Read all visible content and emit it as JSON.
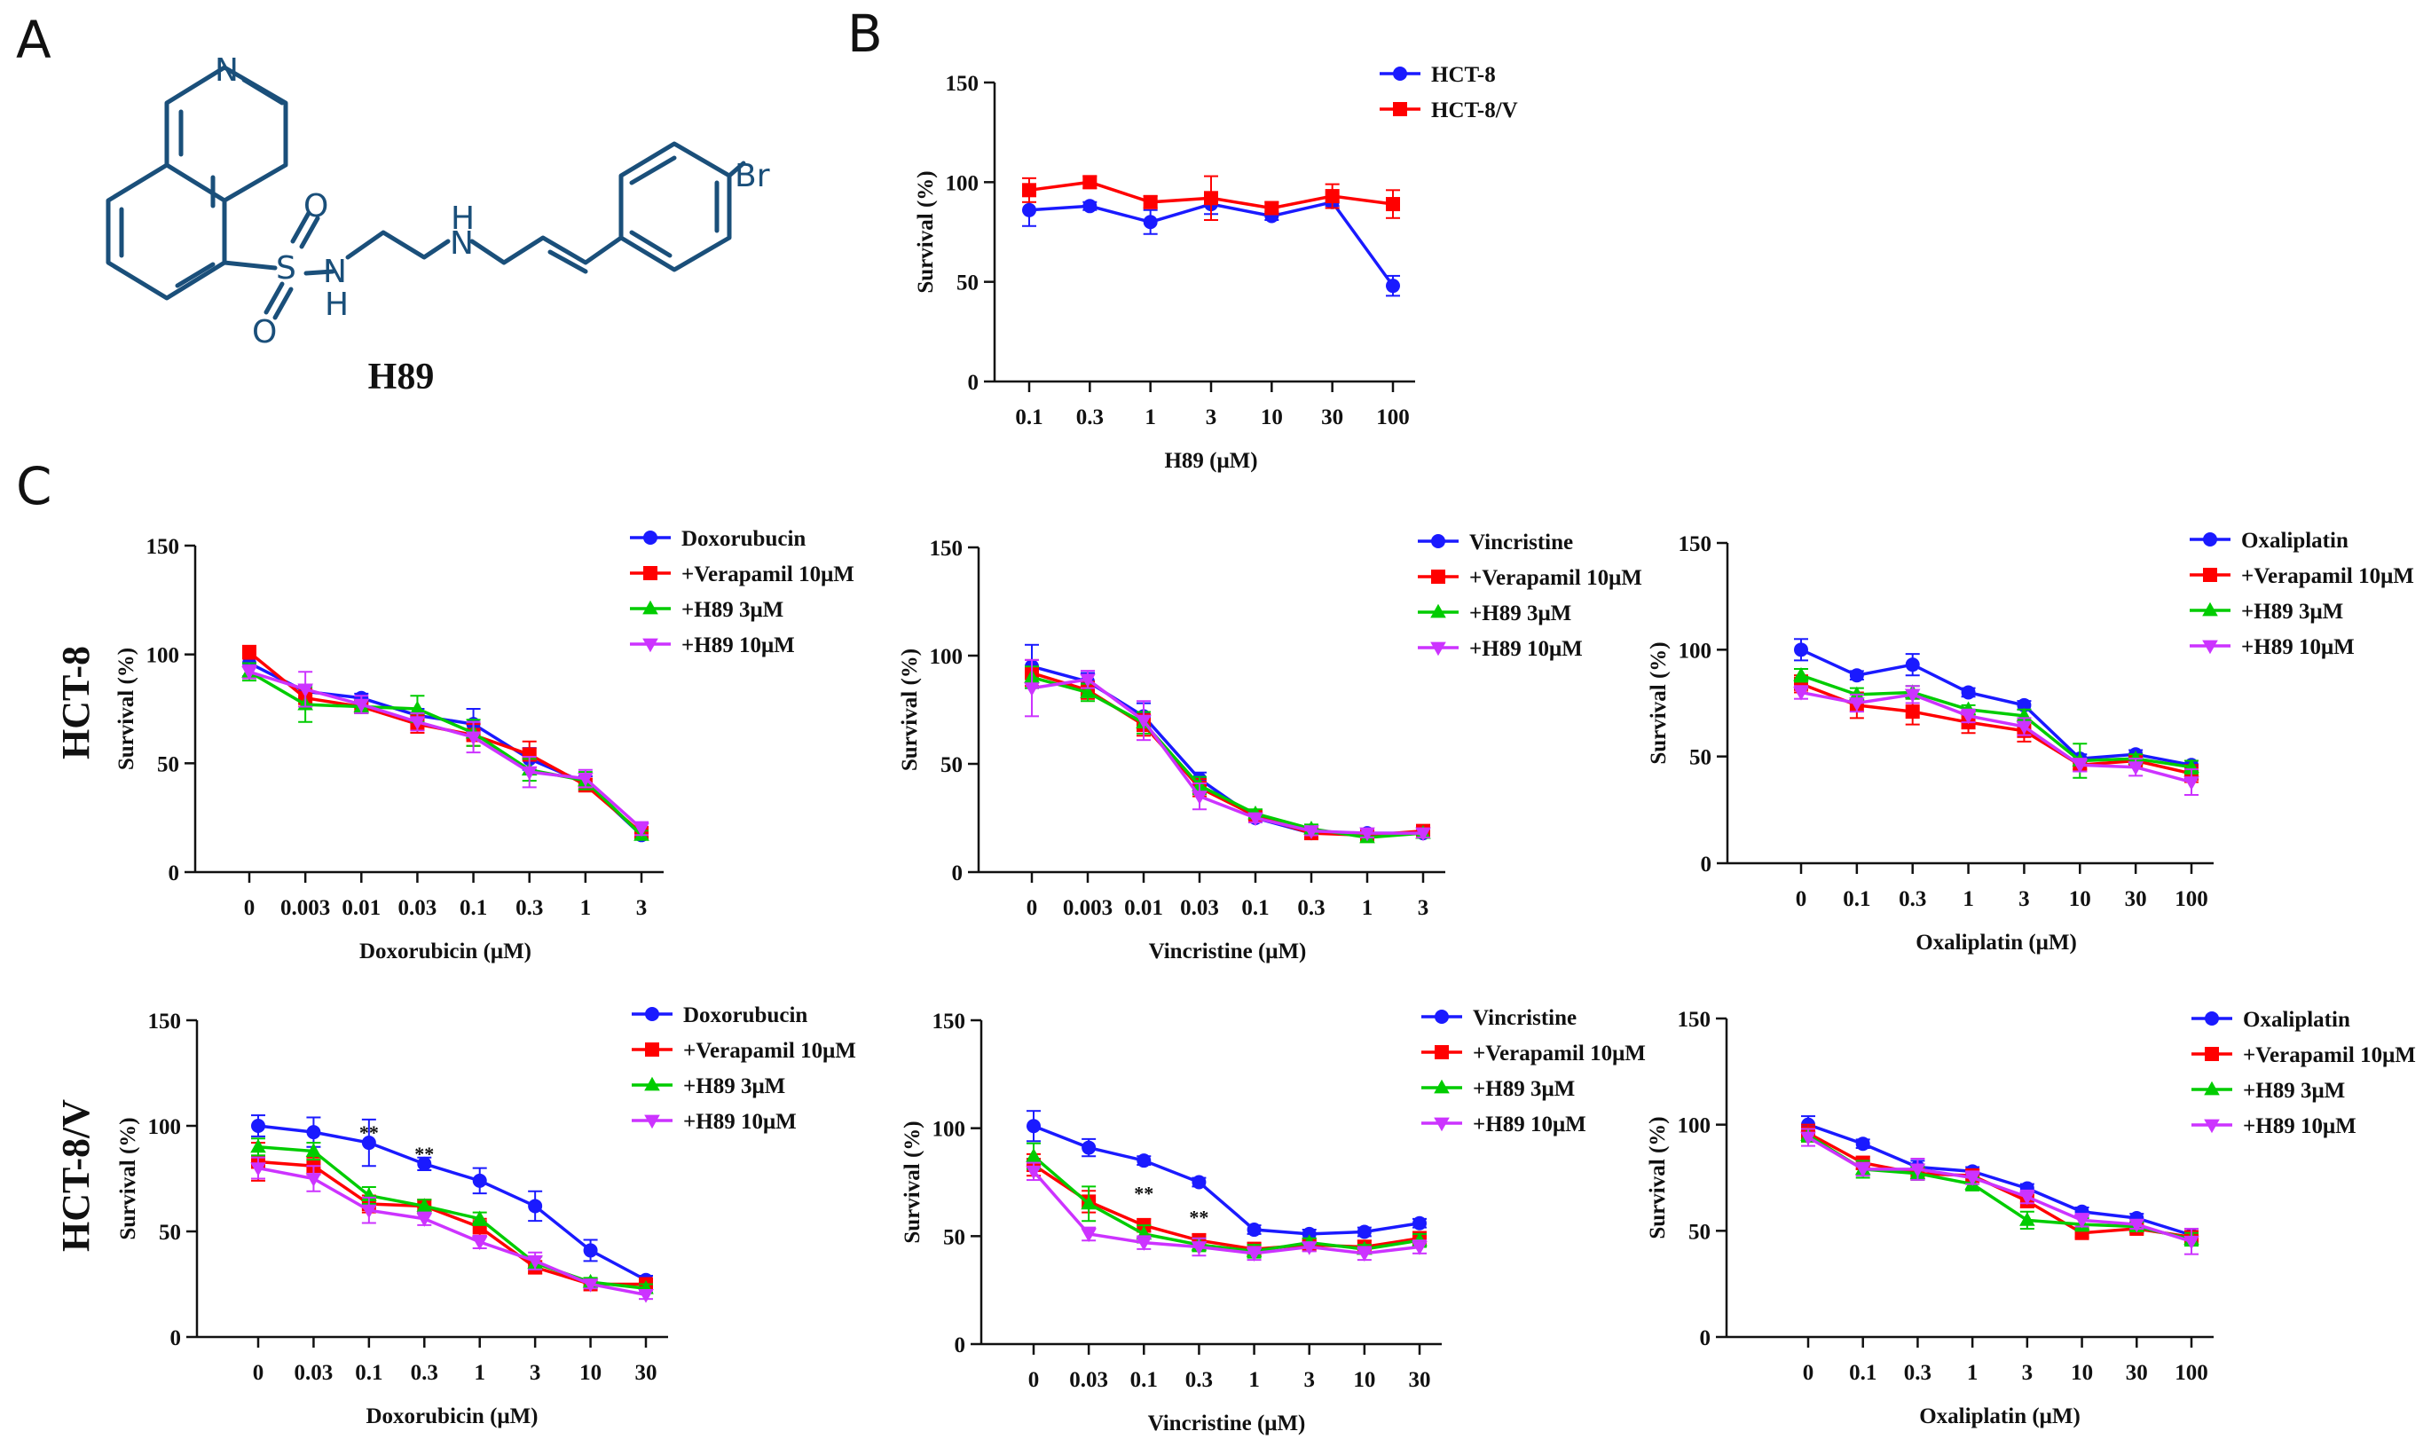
{
  "panels": {
    "a": "A",
    "b": "B",
    "c": "C"
  },
  "molecule": {
    "name": "H89",
    "atoms": {
      "N_ring": "N",
      "S": "S",
      "O1": "O",
      "O2": "O",
      "N1": "N",
      "H1": "H",
      "N2": "N",
      "H2": "H",
      "Br": "Br"
    }
  },
  "row_labels": [
    "HCT-8",
    "HCT-8/V"
  ],
  "colors": {
    "blue": "#1a1aff",
    "red": "#ff0000",
    "green": "#00cc00",
    "magenta": "#cc33ff",
    "axis": "#111111"
  },
  "chart_data": [
    {
      "id": "B",
      "type": "line",
      "title": "",
      "xlabel": "H89 (μM)",
      "ylabel": "Survival (%)",
      "categories": [
        "0.1",
        "0.3",
        "1",
        "3",
        "10",
        "30",
        "100"
      ],
      "ylim": [
        0,
        150
      ],
      "yticks": [
        0,
        50,
        100,
        150
      ],
      "legend_position": "top-right",
      "series": [
        {
          "name": "HCT-8",
          "color": "#1a1aff",
          "marker": "circle",
          "values": [
            86,
            88,
            80,
            89,
            83,
            90,
            48
          ],
          "errors": [
            8,
            2,
            6,
            5,
            2,
            2,
            5
          ]
        },
        {
          "name": "HCT-8/V",
          "color": "#ff0000",
          "marker": "square",
          "values": [
            96,
            100,
            90,
            92,
            87,
            93,
            89
          ],
          "errors": [
            6,
            3,
            3,
            11,
            3,
            6,
            7
          ]
        }
      ],
      "annotations": []
    },
    {
      "id": "C1",
      "type": "line",
      "xlabel": "Doxorubicin (μM)",
      "ylabel": "Survival (%)",
      "categories": [
        "0",
        "0.003",
        "0.01",
        "0.03",
        "0.1",
        "0.3",
        "1",
        "3"
      ],
      "ylim": [
        0,
        150
      ],
      "yticks": [
        0,
        50,
        100,
        150
      ],
      "legend_position": "top-right",
      "series": [
        {
          "name": "Doxorubucin",
          "color": "#1a1aff",
          "marker": "circle",
          "values": [
            96,
            83,
            80,
            72,
            68,
            52,
            41,
            17
          ],
          "errors": [
            6,
            3,
            2,
            3,
            7,
            5,
            3,
            2
          ]
        },
        {
          "name": "+Verapamil 10μM",
          "color": "#ff0000",
          "marker": "square",
          "values": [
            101,
            80,
            76,
            68,
            63,
            54,
            40,
            18
          ],
          "errors": [
            3,
            4,
            3,
            4,
            5,
            6,
            3,
            2
          ]
        },
        {
          "name": "+H89 3μM",
          "color": "#00cc00",
          "marker": "triangle-up",
          "values": [
            92,
            77,
            76,
            75,
            64,
            47,
            42,
            17
          ],
          "errors": [
            4,
            8,
            3,
            6,
            6,
            5,
            4,
            2
          ]
        },
        {
          "name": "+H89 10μM",
          "color": "#cc33ff",
          "marker": "triangle-down",
          "values": [
            92,
            84,
            77,
            69,
            62,
            46,
            43,
            20
          ],
          "errors": [
            3,
            8,
            4,
            4,
            7,
            7,
            4,
            3
          ]
        }
      ],
      "annotations": []
    },
    {
      "id": "C2",
      "type": "line",
      "xlabel": "Vincristine (μM)",
      "ylabel": "Survival (%)",
      "categories": [
        "0",
        "0.003",
        "0.01",
        "0.03",
        "0.1",
        "0.3",
        "1",
        "3"
      ],
      "ylim": [
        0,
        150
      ],
      "yticks": [
        0,
        50,
        100,
        150
      ],
      "legend_position": "top-right",
      "series": [
        {
          "name": "Vincristine",
          "color": "#1a1aff",
          "marker": "circle",
          "values": [
            95,
            88,
            72,
            43,
            25,
            18,
            18,
            18
          ],
          "errors": [
            10,
            4,
            6,
            3,
            2,
            2,
            2,
            2
          ]
        },
        {
          "name": "+Verapamil 10μM",
          "color": "#ff0000",
          "marker": "square",
          "values": [
            92,
            84,
            68,
            39,
            26,
            18,
            17,
            19
          ],
          "errors": [
            6,
            4,
            5,
            4,
            2,
            2,
            2,
            2
          ]
        },
        {
          "name": "+H89 3μM",
          "color": "#00cc00",
          "marker": "triangle-up",
          "values": [
            90,
            83,
            69,
            40,
            27,
            20,
            16,
            18
          ],
          "errors": [
            5,
            4,
            5,
            4,
            2,
            2,
            2,
            2
          ]
        },
        {
          "name": "+H89 10μM",
          "color": "#cc33ff",
          "marker": "triangle-down",
          "values": [
            85,
            89,
            70,
            35,
            25,
            19,
            18,
            18
          ],
          "errors": [
            13,
            4,
            9,
            6,
            2,
            2,
            2,
            2
          ]
        }
      ],
      "annotations": []
    },
    {
      "id": "C3",
      "type": "line",
      "xlabel": "Oxaliplatin (μM)",
      "ylabel": "Survival (%)",
      "categories": [
        "0",
        "0.1",
        "0.3",
        "1",
        "3",
        "10",
        "30",
        "100"
      ],
      "ylim": [
        0,
        150
      ],
      "yticks": [
        0,
        50,
        100,
        150
      ],
      "legend_position": "top-right",
      "series": [
        {
          "name": "Oxaliplatin",
          "color": "#1a1aff",
          "marker": "circle",
          "values": [
            100,
            88,
            93,
            80,
            74,
            49,
            51,
            46
          ],
          "errors": [
            5,
            2,
            5,
            2,
            2,
            2,
            2,
            2
          ]
        },
        {
          "name": "+Verapamil 10μM",
          "color": "#ff0000",
          "marker": "square",
          "values": [
            84,
            74,
            71,
            66,
            62,
            46,
            48,
            42
          ],
          "errors": [
            4,
            6,
            6,
            5,
            5,
            2,
            2,
            4
          ]
        },
        {
          "name": "+H89 3μM",
          "color": "#00cc00",
          "marker": "triangle-up",
          "values": [
            88,
            79,
            80,
            72,
            69,
            48,
            49,
            45
          ],
          "errors": [
            3,
            3,
            3,
            2,
            3,
            8,
            2,
            3
          ]
        },
        {
          "name": "+H89 10μM",
          "color": "#cc33ff",
          "marker": "triangle-down",
          "values": [
            80,
            75,
            79,
            69,
            64,
            46,
            45,
            38
          ],
          "errors": [
            3,
            4,
            4,
            3,
            4,
            3,
            4,
            6
          ]
        }
      ],
      "annotations": []
    },
    {
      "id": "C4",
      "type": "line",
      "xlabel": "Doxorubicin (μM)",
      "ylabel": "Survival (%)",
      "categories": [
        "0",
        "0.03",
        "0.1",
        "0.3",
        "1",
        "3",
        "10",
        "30"
      ],
      "ylim": [
        0,
        150
      ],
      "yticks": [
        0,
        50,
        100,
        150
      ],
      "legend_position": "top-right",
      "series": [
        {
          "name": "Doxorubucin",
          "color": "#1a1aff",
          "marker": "circle",
          "values": [
            100,
            97,
            92,
            82,
            74,
            62,
            41,
            27
          ],
          "errors": [
            5,
            7,
            11,
            3,
            6,
            7,
            5,
            2
          ]
        },
        {
          "name": "+Verapamil 10μM",
          "color": "#ff0000",
          "marker": "square",
          "values": [
            83,
            81,
            63,
            62,
            52,
            33,
            25,
            25
          ],
          "errors": [
            9,
            4,
            4,
            3,
            4,
            3,
            2,
            2
          ]
        },
        {
          "name": "+H89 3μM",
          "color": "#00cc00",
          "marker": "triangle-up",
          "values": [
            90,
            88,
            67,
            62,
            56,
            35,
            26,
            23
          ],
          "errors": [
            4,
            4,
            4,
            3,
            3,
            3,
            2,
            2
          ]
        },
        {
          "name": "+H89 10μM",
          "color": "#cc33ff",
          "marker": "triangle-down",
          "values": [
            80,
            75,
            60,
            56,
            45,
            36,
            25,
            20
          ],
          "errors": [
            5,
            6,
            6,
            3,
            3,
            4,
            2,
            2
          ]
        }
      ],
      "annotations": [
        {
          "category": "0.1",
          "value": 97,
          "text": "**"
        },
        {
          "category": "0.3",
          "value": 87,
          "text": "**"
        }
      ]
    },
    {
      "id": "C5",
      "type": "line",
      "xlabel": "Vincristine (μM)",
      "ylabel": "Survival (%)",
      "categories": [
        "0",
        "0.03",
        "0.1",
        "0.3",
        "1",
        "3",
        "10",
        "30"
      ],
      "ylim": [
        0,
        150
      ],
      "yticks": [
        0,
        50,
        100,
        150
      ],
      "legend_position": "top-right",
      "series": [
        {
          "name": "Vincristine",
          "color": "#1a1aff",
          "marker": "circle",
          "values": [
            101,
            91,
            85,
            75,
            53,
            51,
            52,
            56
          ],
          "errors": [
            7,
            4,
            2,
            2,
            2,
            2,
            2,
            2
          ]
        },
        {
          "name": "+Verapamil 10μM",
          "color": "#ff0000",
          "marker": "square",
          "values": [
            83,
            66,
            55,
            48,
            44,
            46,
            45,
            49
          ],
          "errors": [
            5,
            5,
            3,
            3,
            3,
            2,
            3,
            3
          ]
        },
        {
          "name": "+H89 3μM",
          "color": "#00cc00",
          "marker": "triangle-up",
          "values": [
            87,
            65,
            51,
            46,
            43,
            47,
            44,
            48
          ],
          "errors": [
            6,
            8,
            4,
            3,
            3,
            2,
            2,
            3
          ]
        },
        {
          "name": "+H89 10μM",
          "color": "#cc33ff",
          "marker": "triangle-down",
          "values": [
            80,
            51,
            47,
            45,
            42,
            45,
            42,
            45
          ],
          "errors": [
            4,
            3,
            3,
            4,
            3,
            2,
            3,
            3
          ]
        }
      ],
      "annotations": [
        {
          "category": "0.1",
          "value": 70,
          "text": "**"
        },
        {
          "category": "0.3",
          "value": 59,
          "text": "**"
        }
      ]
    },
    {
      "id": "C6",
      "type": "line",
      "xlabel": "Oxaliplatin (μM)",
      "ylabel": "Survival (%)",
      "categories": [
        "0",
        "0.1",
        "0.3",
        "1",
        "3",
        "10",
        "30",
        "100"
      ],
      "ylim": [
        0,
        150
      ],
      "yticks": [
        0,
        50,
        100,
        150
      ],
      "legend_position": "top-right",
      "series": [
        {
          "name": "Oxaliplatin",
          "color": "#1a1aff",
          "marker": "circle",
          "values": [
            100,
            91,
            80,
            78,
            70,
            59,
            56,
            48
          ],
          "errors": [
            4,
            2,
            3,
            2,
            2,
            2,
            2,
            2
          ]
        },
        {
          "name": "+Verapamil 10μM",
          "color": "#ff0000",
          "marker": "square",
          "values": [
            96,
            82,
            77,
            76,
            64,
            49,
            51,
            47
          ],
          "errors": [
            4,
            3,
            3,
            3,
            3,
            2,
            2,
            2
          ]
        },
        {
          "name": "+H89 3μM",
          "color": "#00cc00",
          "marker": "triangle-up",
          "values": [
            95,
            79,
            77,
            72,
            55,
            53,
            52,
            46
          ],
          "errors": [
            3,
            4,
            3,
            3,
            4,
            3,
            2,
            3
          ]
        },
        {
          "name": "+H89 10μM",
          "color": "#cc33ff",
          "marker": "triangle-down",
          "values": [
            94,
            79,
            79,
            75,
            66,
            55,
            53,
            45
          ],
          "errors": [
            4,
            3,
            5,
            3,
            3,
            3,
            2,
            6
          ]
        }
      ],
      "annotations": []
    }
  ]
}
